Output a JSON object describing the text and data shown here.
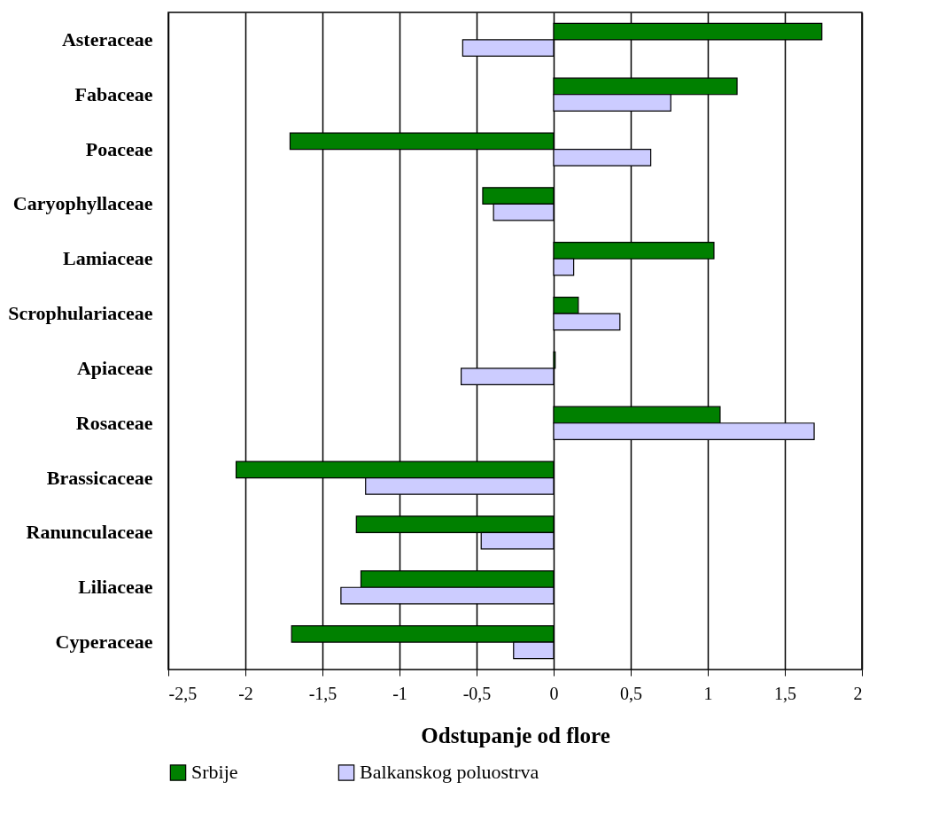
{
  "chart_data": {
    "type": "bar",
    "orientation": "horizontal",
    "xlabel": "Odstupanje od flore",
    "categories": [
      "Asteraceae",
      "Fabaceae",
      "Poaceae",
      "Caryophyllaceae",
      "Lamiaceae",
      "Scrophulariaceae",
      "Apiaceae",
      "Rosaceae",
      "Brassicaceae",
      "Ranunculaceae",
      "Liliaceae",
      "Cyperaceae"
    ],
    "series": [
      {
        "name": "Srbije",
        "color": "#008000",
        "values": [
          1.74,
          1.19,
          -1.71,
          -0.46,
          1.04,
          0.16,
          0.01,
          1.08,
          -2.06,
          -1.28,
          -1.25,
          -1.7
        ]
      },
      {
        "name": "Balkanskog poluostrva",
        "color": "#ccccff",
        "values": [
          -0.59,
          0.76,
          0.63,
          -0.39,
          0.13,
          0.43,
          -0.6,
          1.69,
          -1.22,
          -0.47,
          -1.38,
          -0.26
        ]
      }
    ],
    "xlim": [
      -2.5,
      2
    ],
    "xticks": [
      {
        "value": -2.5,
        "label": "-2,5"
      },
      -2,
      {
        "value": -1.5,
        "label": "-1,5"
      },
      -1,
      {
        "value": -0.5,
        "label": "-0,5"
      },
      0,
      {
        "value": 0.5,
        "label": "0,5"
      },
      1,
      {
        "value": 1.5,
        "label": "1,5"
      },
      2
    ],
    "grid": "x",
    "legend": "bottom"
  }
}
